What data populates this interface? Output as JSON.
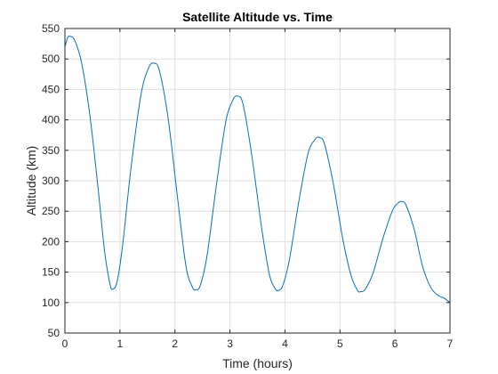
{
  "chart_data": {
    "type": "line",
    "title": "Satellite Altitude vs. Time",
    "xlabel": "Time (hours)",
    "ylabel": "Altitude (km)",
    "xlim": [
      0,
      7
    ],
    "ylim": [
      50,
      550
    ],
    "xticks": [
      0,
      1,
      2,
      3,
      4,
      5,
      6,
      7
    ],
    "yticks": [
      50,
      100,
      150,
      200,
      250,
      300,
      350,
      400,
      450,
      500,
      550
    ],
    "grid": true,
    "series_color": "#0072bd",
    "series": [
      {
        "x": [
          0,
          0.05,
          0.1,
          0.18,
          0.3,
          0.45,
          0.6,
          0.72,
          0.82,
          0.87,
          0.95,
          1.05,
          1.2,
          1.38,
          1.52,
          1.62,
          1.72,
          1.88,
          2.05,
          2.2,
          2.32,
          2.38,
          2.46,
          2.58,
          2.75,
          2.92,
          3.05,
          3.14,
          3.24,
          3.4,
          3.58,
          3.72,
          3.83,
          3.88,
          3.96,
          4.08,
          4.25,
          4.42,
          4.55,
          4.63,
          4.72,
          4.88,
          5.05,
          5.2,
          5.32,
          5.38,
          5.46,
          5.6,
          5.78,
          5.95,
          6.05,
          6.12,
          6.2,
          6.35,
          6.5,
          6.65,
          6.78,
          6.9,
          7.0
        ],
        "y": [
          520,
          535,
          537,
          530,
          495,
          410,
          290,
          185,
          130,
          122,
          135,
          195,
          320,
          440,
          485,
          493,
          480,
          400,
          270,
          160,
          125,
          121,
          128,
          175,
          290,
          395,
          432,
          439,
          425,
          340,
          220,
          145,
          122,
          120,
          128,
          170,
          265,
          345,
          368,
          371,
          360,
          295,
          205,
          145,
          120,
          118,
          122,
          148,
          205,
          250,
          263,
          266,
          260,
          220,
          160,
          125,
          112,
          107,
          100
        ]
      }
    ]
  }
}
